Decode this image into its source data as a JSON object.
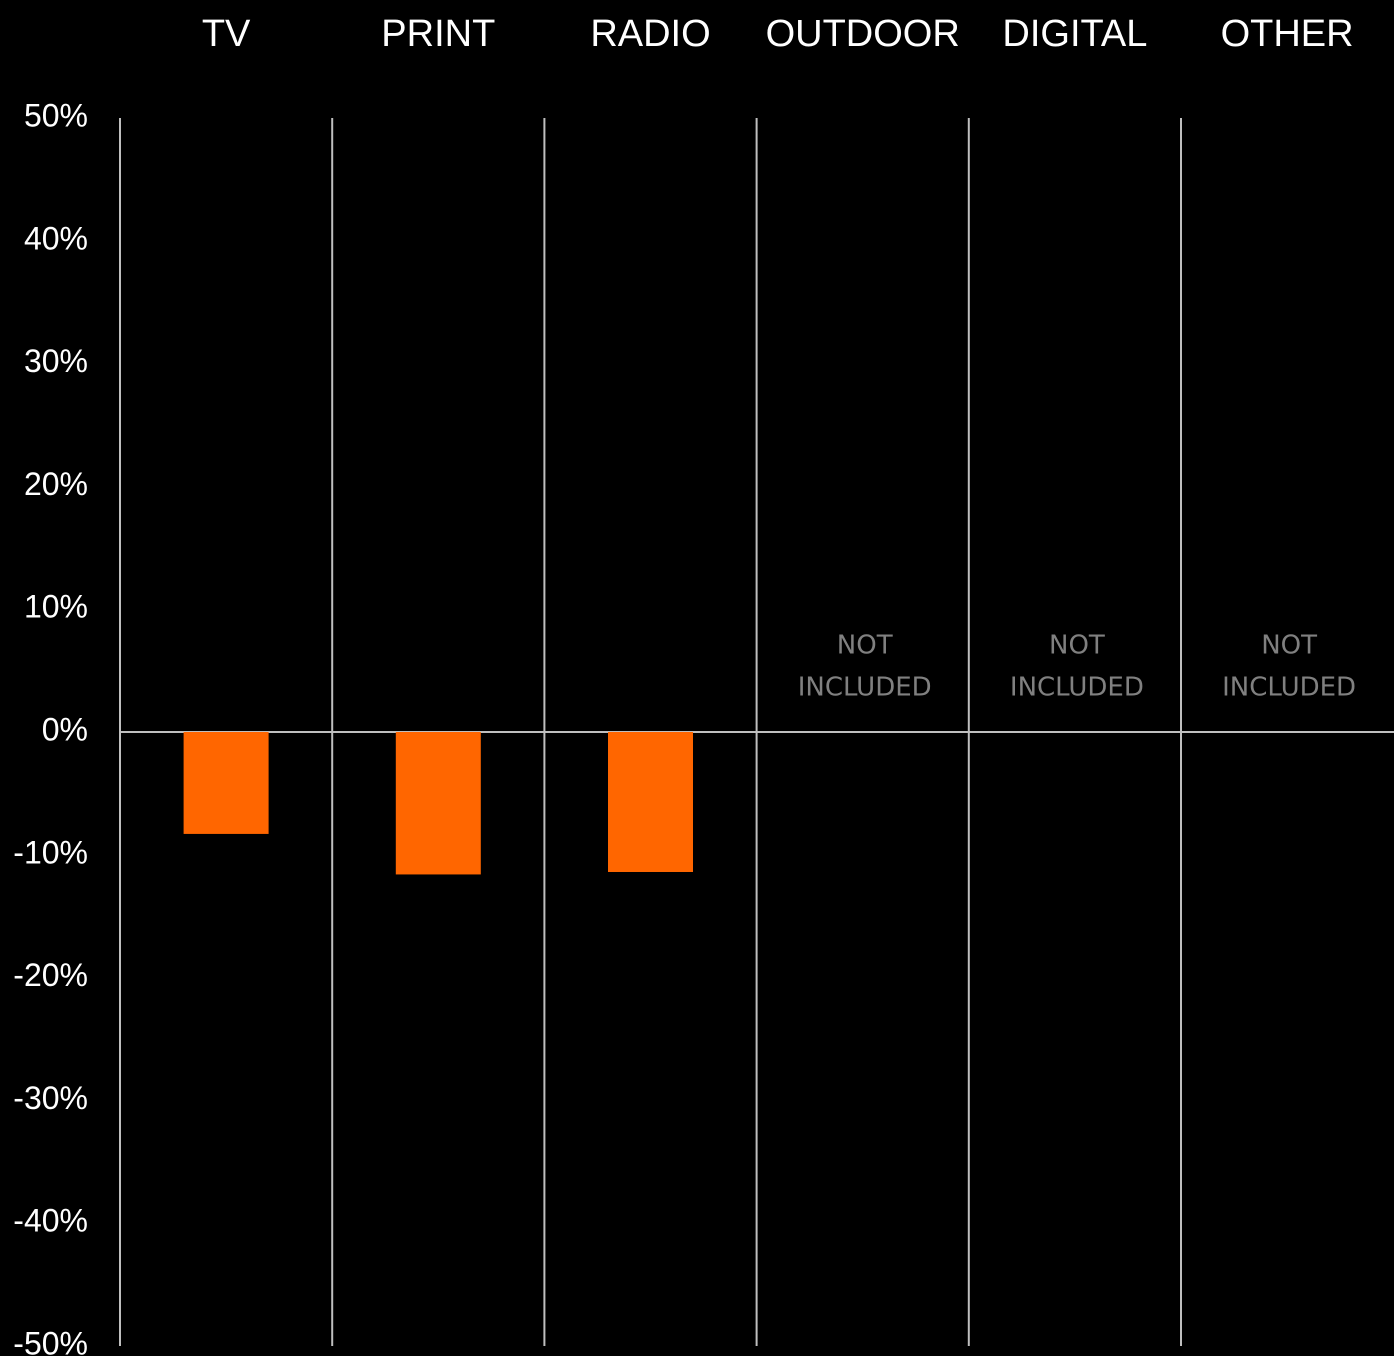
{
  "chart_data": {
    "type": "bar",
    "categories": [
      "TV",
      "PRINT",
      "RADIO",
      "OUTDOOR",
      "DIGITAL",
      "OTHER"
    ],
    "values": [
      -8.3,
      -11.6,
      -11.4,
      null,
      null,
      null
    ],
    "annotations": [
      null,
      null,
      null,
      [
        "NOT",
        "INCLUDED"
      ],
      [
        "NOT",
        "INCLUDED"
      ],
      [
        "NOT",
        "INCLUDED"
      ]
    ],
    "title": "",
    "xlabel": "",
    "ylabel": "",
    "ylim": [
      -50,
      50
    ],
    "yticks": [
      50,
      40,
      30,
      20,
      10,
      0,
      -10,
      -20,
      -30,
      -40,
      -50
    ],
    "ytick_labels": [
      "50%",
      "40%",
      "30%",
      "20%",
      "10%",
      "0%",
      "-10%",
      "-20%",
      "-30%",
      "-40%",
      "-50%"
    ],
    "category_axis_position": "top",
    "grid": "vertical separators between categories",
    "legend": "none"
  },
  "colors": {
    "background": "#000000",
    "bar": "#FF6600",
    "text": "#FFFFFF",
    "annotation": "#808080",
    "gridline": "#BFBFBF"
  }
}
